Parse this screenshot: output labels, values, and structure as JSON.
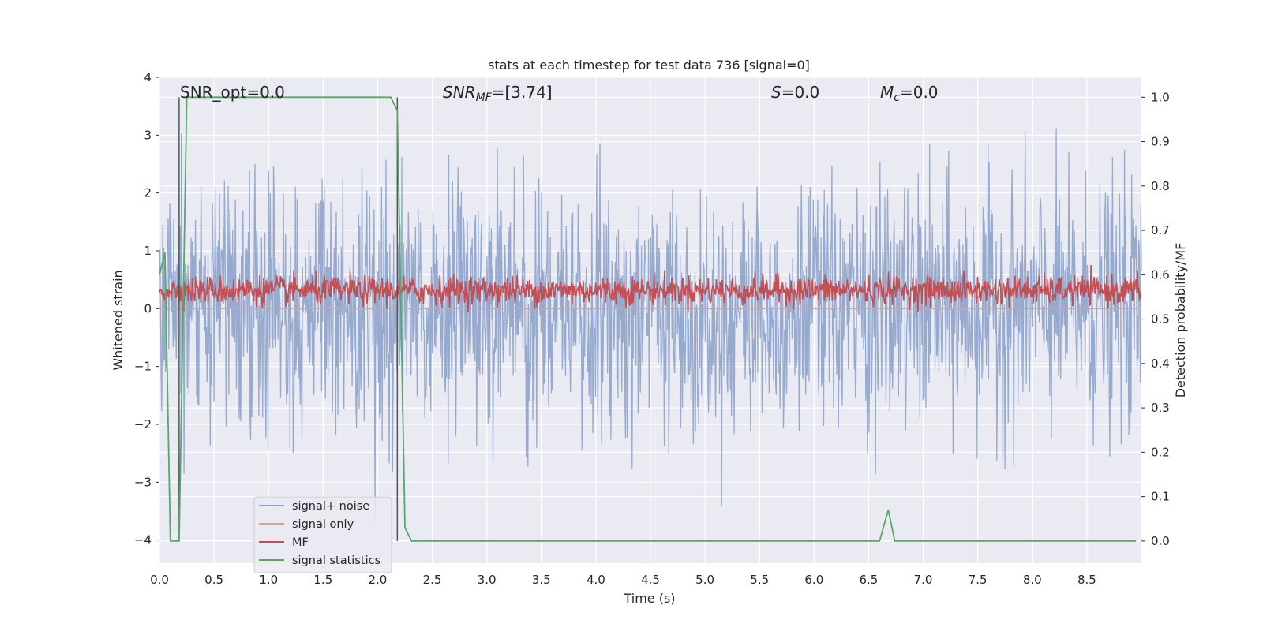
{
  "chart_data": {
    "type": "line",
    "title": "stats at each timestep for test data 736 [signal=0]",
    "xlabel": "Time (s)",
    "ylabel_left": "Whitened strain",
    "ylabel_right": "Detection probability/MF",
    "xlim": [
      0,
      9
    ],
    "ylim_left": [
      -4.4,
      4
    ],
    "ylim_right": [
      -0.05,
      1.045
    ],
    "xticks": [
      "0.0",
      "0.5",
      "1.0",
      "1.5",
      "2.0",
      "2.5",
      "3.0",
      "3.5",
      "4.0",
      "4.5",
      "5.0",
      "5.5",
      "6.0",
      "6.5",
      "7.0",
      "7.5",
      "8.0",
      "8.5"
    ],
    "yticks_left": [
      "4",
      "3",
      "2",
      "1",
      "0",
      "−1",
      "−2",
      "−3",
      "−4"
    ],
    "yticks_right": [
      "1.0",
      "0.9",
      "0.8",
      "0.7",
      "0.6",
      "0.5",
      "0.4",
      "0.3",
      "0.2",
      "0.1",
      "0.0"
    ],
    "grid": true,
    "legend_position": "bottom-left",
    "legend": [
      "signal+ noise",
      "signal only",
      "MF",
      "signal statistics"
    ],
    "colors": {
      "noise": "#8da3cc",
      "signal": "#e8a07a",
      "mf": "#c44e52",
      "stats": "#55a868",
      "background": "#eaeaf2",
      "vline": "#555555"
    },
    "annotations": {
      "snr_opt": "SNR_opt=0.0",
      "snr_mf_main": "SNR",
      "snr_mf_sub": "MF",
      "snr_mf_value": "=[3.74]",
      "s_main": "S",
      "s_value": "=0.0",
      "mc_main": "M",
      "mc_sub": "c",
      "mc_value": "=0.0"
    },
    "vertical_lines_x": [
      0.18,
      2.18
    ],
    "noise_series": {
      "name": "signal+ noise",
      "duration": 9,
      "envelope_approx": [
        -3.6,
        3.6
      ],
      "dense_band": [
        -1.7,
        2.0
      ]
    },
    "signal_series": {
      "name": "signal only",
      "value": 0.0
    },
    "mf_series": {
      "name": "MF",
      "axis": "right",
      "center": 0.565,
      "range_approx": [
        0.525,
        0.62
      ]
    },
    "stats_series": {
      "name": "signal statistics",
      "axis": "right",
      "x": [
        0.0,
        0.05,
        0.1,
        0.18,
        0.25,
        1.0,
        2.0,
        2.12,
        2.18,
        2.25,
        2.31,
        3.0,
        4.0,
        5.0,
        6.0,
        6.5,
        6.6,
        6.68,
        6.74,
        7.0,
        8.0,
        8.95
      ],
      "y": [
        0.6,
        0.65,
        0.0,
        0.0,
        1.0,
        1.0,
        1.0,
        1.0,
        0.97,
        0.03,
        0.0,
        0.0,
        0.0,
        0.0,
        0.0,
        0.0,
        0.0,
        0.07,
        0.0,
        0.0,
        0.0,
        0.0
      ]
    }
  }
}
